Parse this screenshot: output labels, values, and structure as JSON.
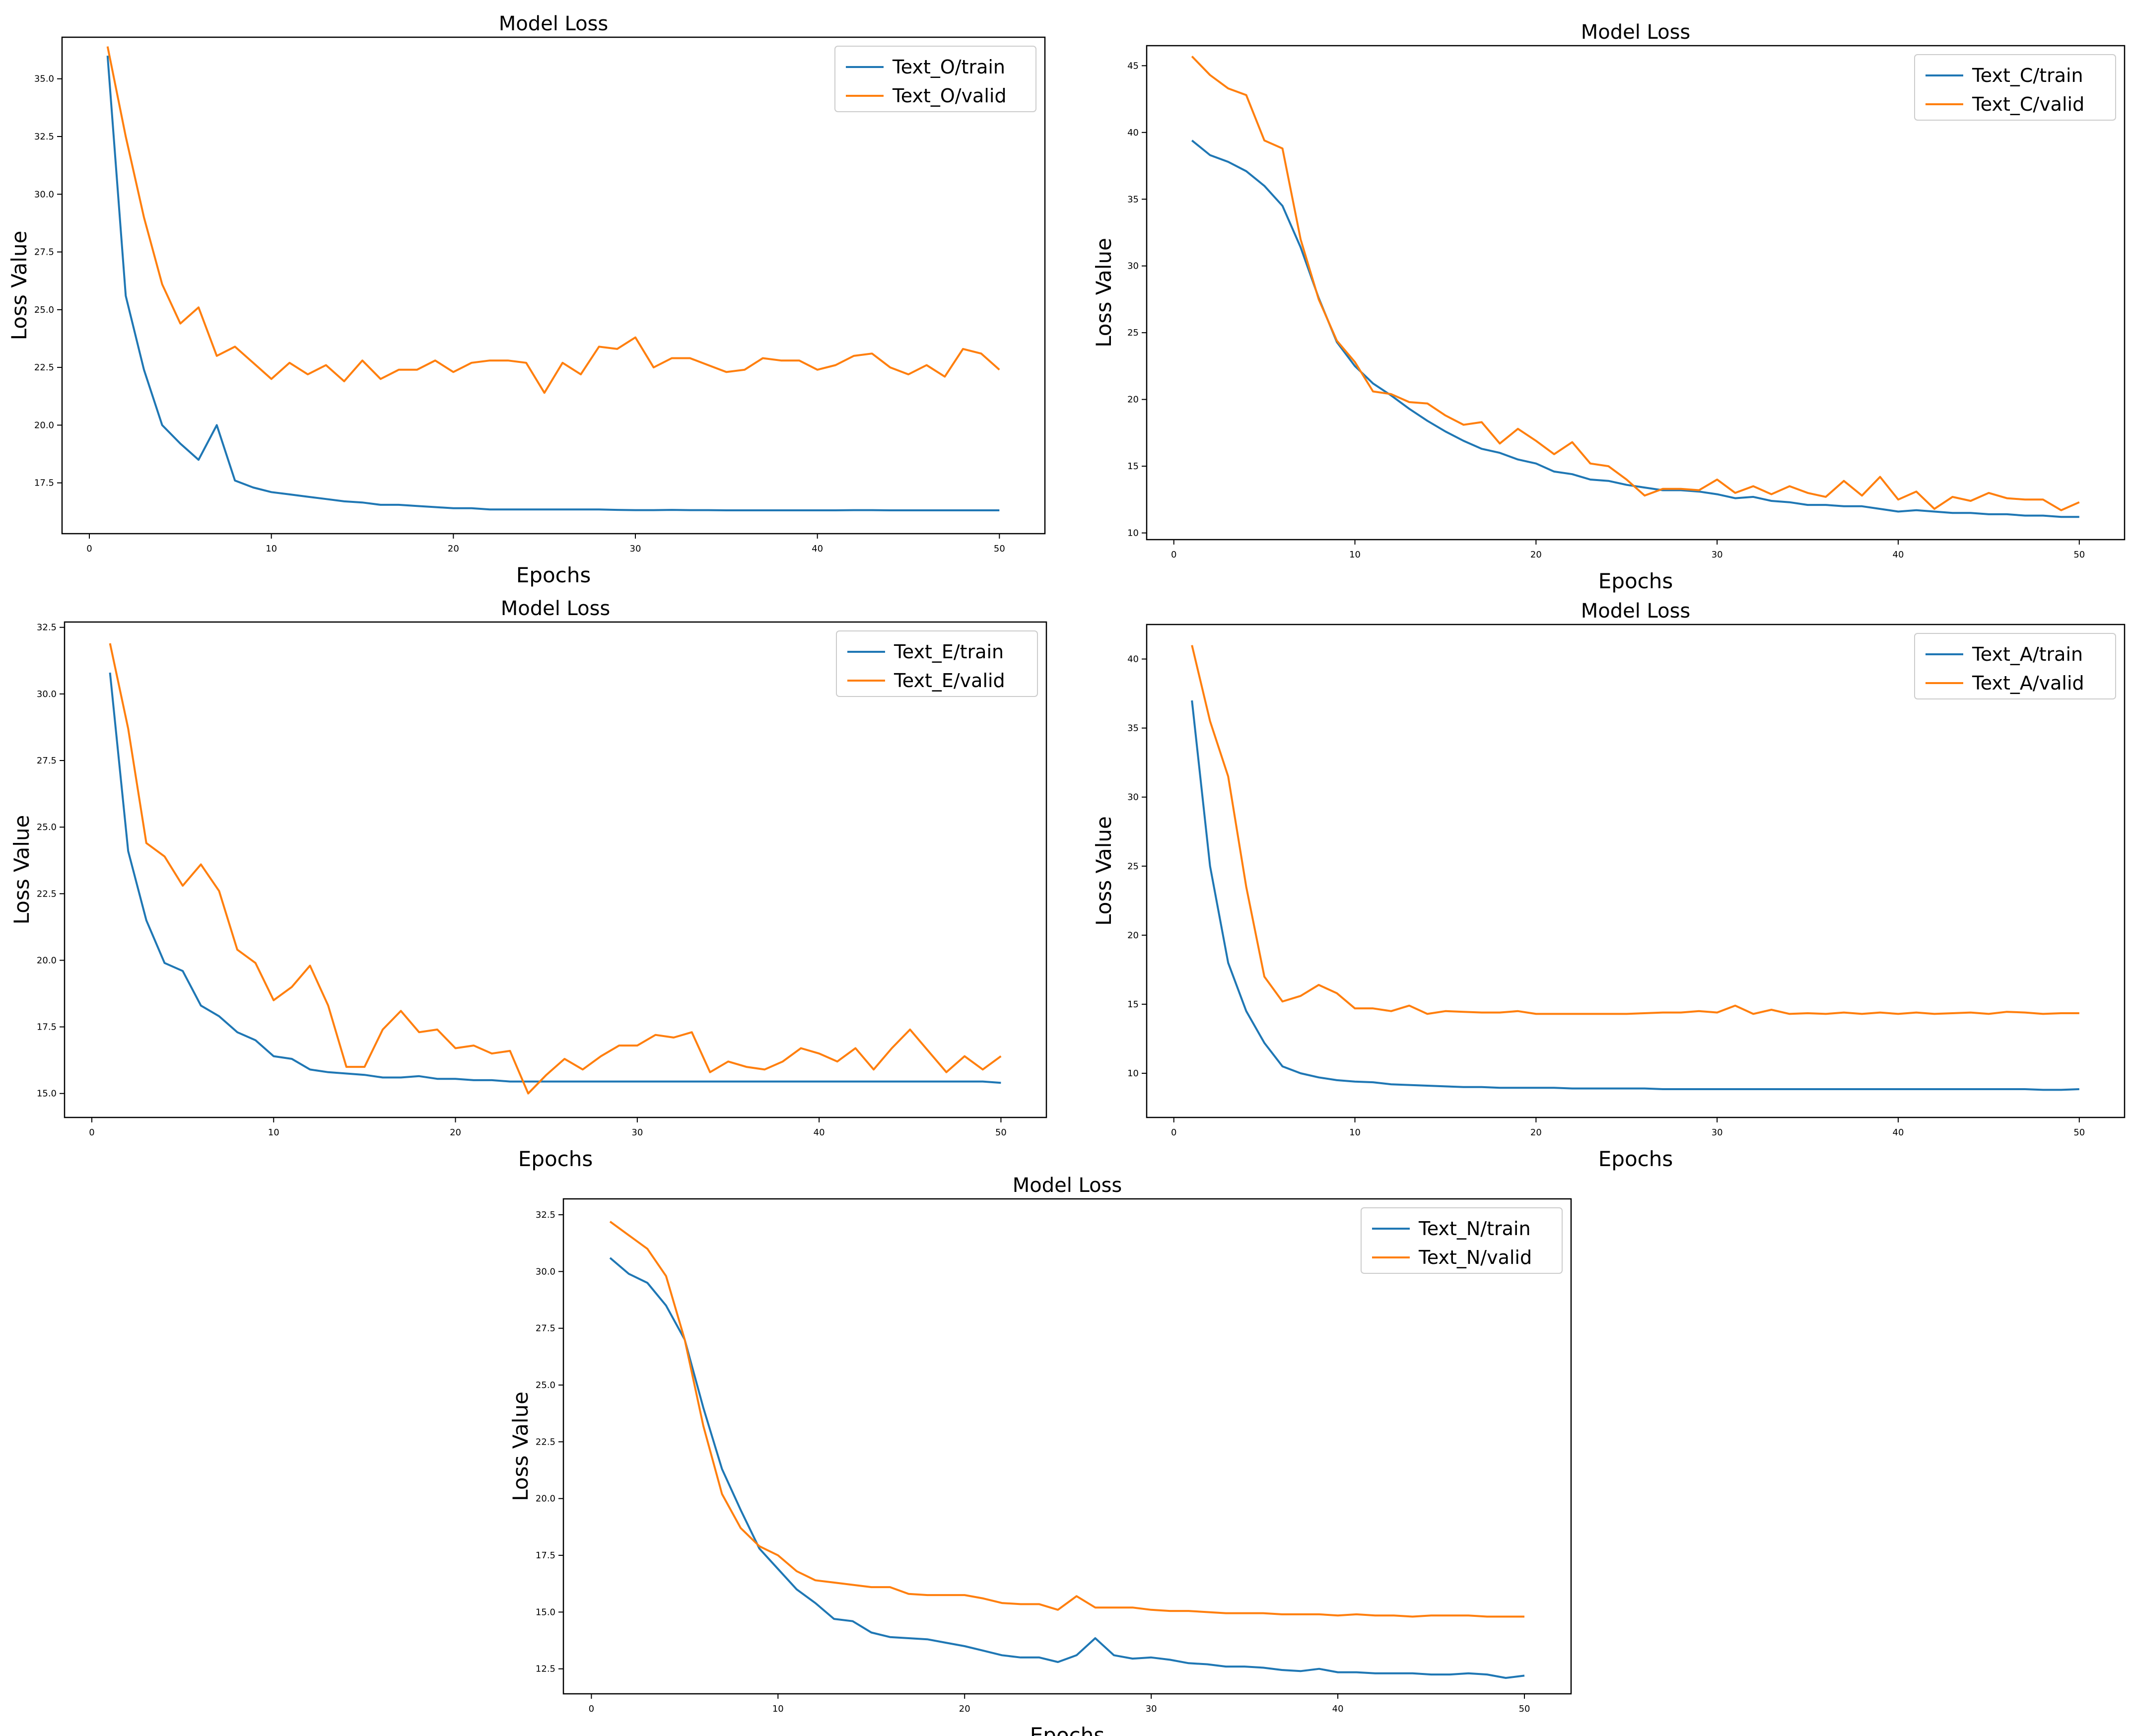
{
  "colors": {
    "train": "#1f77b4",
    "valid": "#ff7f0e",
    "frame": "#000000",
    "background": "#ffffff"
  },
  "chart_data": [
    {
      "type": "line",
      "title": "Model Loss",
      "xlabel": "Epochs",
      "ylabel": "Loss Value",
      "xlim": [
        -1.5,
        52.5
      ],
      "ylim": [
        15.3,
        36.8
      ],
      "xticks": [
        0,
        10,
        20,
        30,
        40,
        50
      ],
      "yticks": [
        17.5,
        20.0,
        22.5,
        25.0,
        27.5,
        30.0,
        32.5,
        35.0
      ],
      "legend": "top-right",
      "series": [
        {
          "name": "Text_O/train",
          "color": "train",
          "values": [
            36.0,
            25.6,
            22.4,
            20.0,
            19.2,
            18.5,
            20.0,
            17.6,
            17.3,
            17.1,
            17.0,
            16.9,
            16.8,
            16.7,
            16.65,
            16.55,
            16.55,
            16.5,
            16.45,
            16.4,
            16.4,
            16.35,
            16.35,
            16.35,
            16.35,
            16.35,
            16.35,
            16.35,
            16.33,
            16.32,
            16.32,
            16.33,
            16.32,
            16.32,
            16.31,
            16.31,
            16.31,
            16.31,
            16.31,
            16.31,
            16.31,
            16.32,
            16.32,
            16.31,
            16.31,
            16.31,
            16.31,
            16.31,
            16.31,
            16.31
          ]
        },
        {
          "name": "Text_O/valid",
          "color": "valid",
          "values": [
            36.4,
            32.5,
            29.0,
            26.1,
            24.4,
            25.1,
            23.0,
            23.4,
            22.7,
            22.0,
            22.7,
            22.2,
            22.6,
            21.9,
            22.8,
            22.0,
            22.4,
            22.4,
            22.8,
            22.3,
            22.7,
            22.8,
            22.8,
            22.7,
            21.4,
            22.7,
            22.2,
            23.4,
            23.3,
            23.8,
            22.5,
            22.9,
            22.9,
            22.6,
            22.3,
            22.4,
            22.9,
            22.8,
            22.8,
            22.4,
            22.6,
            23.0,
            23.1,
            22.5,
            22.2,
            22.6,
            22.1,
            23.3,
            23.1,
            22.4
          ]
        }
      ]
    },
    {
      "type": "line",
      "title": "Model Loss",
      "xlabel": "Epochs",
      "ylabel": "Loss Value",
      "xlim": [
        -1.5,
        52.5
      ],
      "ylim": [
        9.5,
        46.5
      ],
      "xticks": [
        0,
        10,
        20,
        30,
        40,
        50
      ],
      "yticks": [
        10,
        15,
        20,
        25,
        30,
        35,
        40,
        45
      ],
      "legend": "top-right",
      "series": [
        {
          "name": "Text_C/train",
          "color": "train",
          "values": [
            39.4,
            38.3,
            37.8,
            37.1,
            36.0,
            34.5,
            31.4,
            27.6,
            24.3,
            22.5,
            21.2,
            20.3,
            19.3,
            18.4,
            17.6,
            16.9,
            16.3,
            16.0,
            15.5,
            15.2,
            14.6,
            14.4,
            14.0,
            13.9,
            13.6,
            13.4,
            13.2,
            13.2,
            13.1,
            12.9,
            12.6,
            12.7,
            12.4,
            12.3,
            12.1,
            12.1,
            12.0,
            12.0,
            11.8,
            11.6,
            11.7,
            11.6,
            11.5,
            11.5,
            11.4,
            11.4,
            11.3,
            11.3,
            11.2,
            11.2
          ]
        },
        {
          "name": "Text_C/valid",
          "color": "valid",
          "values": [
            45.7,
            44.3,
            43.3,
            42.8,
            39.4,
            38.8,
            32.0,
            27.5,
            24.4,
            22.8,
            20.6,
            20.4,
            19.8,
            19.7,
            18.8,
            18.1,
            18.3,
            16.7,
            17.8,
            16.9,
            15.9,
            16.8,
            15.2,
            15.0,
            14.0,
            12.8,
            13.3,
            13.3,
            13.2,
            14.0,
            13.0,
            13.5,
            12.9,
            13.5,
            13.0,
            12.7,
            13.9,
            12.8,
            14.2,
            12.5,
            13.1,
            11.8,
            12.7,
            12.4,
            13.0,
            12.6,
            12.5,
            12.5,
            11.7,
            12.3
          ]
        }
      ]
    },
    {
      "type": "line",
      "title": "Model Loss",
      "xlabel": "Epochs",
      "ylabel": "Loss Value",
      "xlim": [
        -1.5,
        52.5
      ],
      "ylim": [
        14.1,
        32.7
      ],
      "xticks": [
        0,
        10,
        20,
        30,
        40,
        50
      ],
      "yticks": [
        15.0,
        17.5,
        20.0,
        22.5,
        25.0,
        27.5,
        30.0,
        32.5
      ],
      "legend": "top-right",
      "series": [
        {
          "name": "Text_E/train",
          "color": "train",
          "values": [
            30.8,
            24.1,
            21.5,
            19.9,
            19.6,
            18.3,
            17.9,
            17.3,
            17.0,
            16.4,
            16.3,
            15.9,
            15.8,
            15.75,
            15.7,
            15.6,
            15.6,
            15.65,
            15.55,
            15.55,
            15.5,
            15.5,
            15.45,
            15.45,
            15.45,
            15.45,
            15.45,
            15.45,
            15.45,
            15.45,
            15.45,
            15.45,
            15.45,
            15.45,
            15.45,
            15.45,
            15.45,
            15.45,
            15.45,
            15.45,
            15.45,
            15.45,
            15.45,
            15.45,
            15.45,
            15.45,
            15.45,
            15.45,
            15.45,
            15.4
          ]
        },
        {
          "name": "Text_E/valid",
          "color": "valid",
          "values": [
            31.9,
            28.7,
            24.4,
            23.9,
            22.8,
            23.6,
            22.6,
            20.4,
            19.9,
            18.5,
            19.0,
            19.8,
            18.3,
            16.0,
            16.0,
            17.4,
            18.1,
            17.3,
            17.4,
            16.7,
            16.8,
            16.5,
            16.6,
            15.0,
            15.7,
            16.3,
            15.9,
            16.4,
            16.8,
            16.8,
            17.2,
            17.1,
            17.3,
            15.8,
            16.2,
            16.0,
            15.9,
            16.2,
            16.7,
            16.5,
            16.2,
            16.7,
            15.9,
            16.7,
            17.4,
            16.6,
            15.8,
            16.4,
            15.9,
            16.4
          ]
        }
      ]
    },
    {
      "type": "line",
      "title": "Model Loss",
      "xlabel": "Epochs",
      "ylabel": "Loss Value",
      "xlim": [
        -1.5,
        52.5
      ],
      "ylim": [
        6.8,
        42.5
      ],
      "xticks": [
        0,
        10,
        20,
        30,
        40,
        50
      ],
      "yticks": [
        10,
        15,
        20,
        25,
        30,
        35,
        40
      ],
      "legend": "top-right",
      "series": [
        {
          "name": "Text_A/train",
          "color": "train",
          "values": [
            37.0,
            25.0,
            18.0,
            14.5,
            12.2,
            10.5,
            10.0,
            9.7,
            9.5,
            9.4,
            9.35,
            9.2,
            9.15,
            9.1,
            9.05,
            9.0,
            9.0,
            8.95,
            8.95,
            8.95,
            8.95,
            8.9,
            8.9,
            8.9,
            8.9,
            8.9,
            8.85,
            8.85,
            8.85,
            8.85,
            8.85,
            8.85,
            8.85,
            8.85,
            8.85,
            8.85,
            8.85,
            8.85,
            8.85,
            8.85,
            8.85,
            8.85,
            8.85,
            8.85,
            8.85,
            8.85,
            8.85,
            8.8,
            8.8,
            8.85
          ]
        },
        {
          "name": "Text_A/valid",
          "color": "valid",
          "values": [
            41.0,
            35.5,
            31.5,
            23.5,
            17.0,
            15.2,
            15.6,
            16.4,
            15.8,
            14.7,
            14.7,
            14.5,
            14.9,
            14.3,
            14.5,
            14.45,
            14.4,
            14.4,
            14.5,
            14.3,
            14.3,
            14.3,
            14.3,
            14.3,
            14.3,
            14.35,
            14.4,
            14.4,
            14.5,
            14.4,
            14.9,
            14.3,
            14.6,
            14.3,
            14.35,
            14.3,
            14.4,
            14.3,
            14.4,
            14.3,
            14.4,
            14.3,
            14.35,
            14.4,
            14.3,
            14.45,
            14.4,
            14.3,
            14.35,
            14.35
          ]
        }
      ]
    },
    {
      "type": "line",
      "title": "Model Loss",
      "xlabel": "Epochs",
      "ylabel": "Loss Value",
      "xlim": [
        -1.5,
        52.5
      ],
      "ylim": [
        11.4,
        33.2
      ],
      "xticks": [
        0,
        10,
        20,
        30,
        40,
        50
      ],
      "yticks": [
        12.5,
        15.0,
        17.5,
        20.0,
        22.5,
        25.0,
        27.5,
        30.0,
        32.5
      ],
      "legend": "top-right",
      "series": [
        {
          "name": "Text_N/train",
          "color": "train",
          "values": [
            30.6,
            29.9,
            29.5,
            28.5,
            27.0,
            24.0,
            21.3,
            19.5,
            17.8,
            16.9,
            16.0,
            15.4,
            14.7,
            14.6,
            14.1,
            13.9,
            13.85,
            13.8,
            13.65,
            13.5,
            13.3,
            13.1,
            13.0,
            13.0,
            12.8,
            13.1,
            13.85,
            13.1,
            12.95,
            13.0,
            12.9,
            12.75,
            12.7,
            12.6,
            12.6,
            12.55,
            12.45,
            12.4,
            12.5,
            12.35,
            12.35,
            12.3,
            12.3,
            12.3,
            12.25,
            12.25,
            12.3,
            12.25,
            12.1,
            12.2
          ]
        },
        {
          "name": "Text_N/valid",
          "color": "valid",
          "values": [
            32.2,
            31.6,
            31.0,
            29.8,
            27.0,
            23.2,
            20.2,
            18.7,
            17.9,
            17.5,
            16.8,
            16.4,
            16.3,
            16.2,
            16.1,
            16.1,
            15.8,
            15.75,
            15.75,
            15.75,
            15.6,
            15.4,
            15.35,
            15.35,
            15.1,
            15.7,
            15.2,
            15.2,
            15.2,
            15.1,
            15.05,
            15.05,
            15.0,
            14.95,
            14.95,
            14.95,
            14.9,
            14.9,
            14.9,
            14.85,
            14.9,
            14.85,
            14.85,
            14.8,
            14.85,
            14.85,
            14.85,
            14.8,
            14.8,
            14.8
          ]
        }
      ]
    }
  ]
}
